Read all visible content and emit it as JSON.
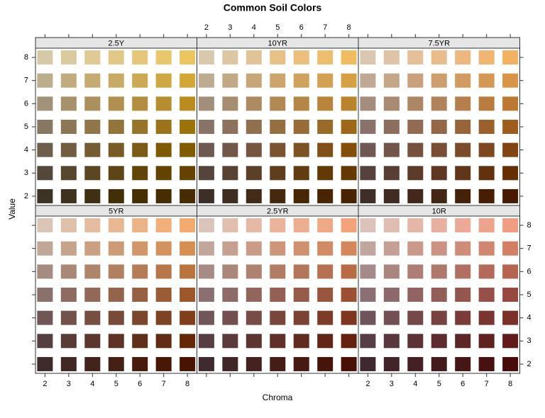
{
  "chart_data": {
    "type": "tile",
    "title": "Common Soil Colors",
    "x_label": "Chroma",
    "y_label": "Value",
    "chroma": [
      2,
      3,
      4,
      5,
      6,
      7,
      8
    ],
    "value": [
      2,
      3,
      4,
      5,
      6,
      7,
      8
    ],
    "xlim": [
      1.6,
      8.4
    ],
    "ylim": [
      1.6,
      8.4
    ],
    "xticks": [
      2,
      3,
      4,
      5,
      6,
      7,
      8
    ],
    "yticks": [
      2,
      3,
      4,
      5,
      6,
      7,
      8
    ],
    "panels": [
      {
        "hue": "2.5Y",
        "colors": [
          [
            "#3c3226",
            "#3e311d",
            "#403012",
            "#422f06",
            "#442e00",
            "#452d00",
            "#462c00"
          ],
          [
            "#54483a",
            "#57472e",
            "#5a4622",
            "#5d4516",
            "#604408",
            "#624300",
            "#644200"
          ],
          [
            "#6d5f4c",
            "#715e40",
            "#755d33",
            "#795c25",
            "#7c5b16",
            "#7f5a05",
            "#825a00"
          ],
          [
            "#877864",
            "#8b7756",
            "#907648",
            "#947538",
            "#98742a",
            "#9b731a",
            "#9d7208"
          ],
          [
            "#a1927a",
            "#a6916c",
            "#ab905e",
            "#b08f4f",
            "#b48e40",
            "#b78d30",
            "#ba8c1f"
          ],
          [
            "#bcad8c",
            "#c0ac80",
            "#c5ab72",
            "#c9aa64",
            "#cca955",
            "#cfa846",
            "#d2a735"
          ],
          [
            "#d6c9a8",
            "#dacaa0",
            "#dfc994",
            "#e2c887",
            "#e5c77a",
            "#e8c66c",
            "#ebc55e"
          ]
        ]
      },
      {
        "hue": "10YR",
        "colors": [
          [
            "#3d2f28",
            "#402d21",
            "#422b17",
            "#44290d",
            "#462703",
            "#482500",
            "#492300"
          ],
          [
            "#55443b",
            "#584232",
            "#5b4027",
            "#5e3e1c",
            "#613c10",
            "#633a04",
            "#653800"
          ],
          [
            "#6e5a50",
            "#725849",
            "#765640",
            "#7a5432",
            "#7d5225",
            "#805018",
            "#834e08"
          ],
          [
            "#887467",
            "#8c725b",
            "#91704e",
            "#956e42",
            "#996c35",
            "#9c6a28",
            "#9f6818"
          ],
          [
            "#a28f7b",
            "#a78d6f",
            "#ac8b61",
            "#b08954",
            "#b48746",
            "#b8853a",
            "#bb832b"
          ],
          [
            "#bdab92",
            "#c2a986",
            "#c7a779",
            "#cba56c",
            "#cfa35e",
            "#d3a151",
            "#d69f42"
          ],
          [
            "#d7c8ae",
            "#dcc6a3",
            "#e1c496",
            "#e6c289",
            "#eac07c",
            "#eebe6e",
            "#f1bc60"
          ]
        ]
      },
      {
        "hue": "7.5YR",
        "colors": [
          [
            "#3e2d29",
            "#402a22",
            "#42271a",
            "#442412",
            "#46210a",
            "#471e02",
            "#481b00"
          ],
          [
            "#56413d",
            "#593e34",
            "#5c3b2b",
            "#5e3822",
            "#613518",
            "#63320d",
            "#652f02"
          ],
          [
            "#6f5753",
            "#73544a",
            "#76513f",
            "#794e35",
            "#7c4b2a",
            "#7e471e",
            "#814412"
          ],
          [
            "#89726a",
            "#8d6e5e",
            "#926b52",
            "#956746",
            "#986439",
            "#9b602c",
            "#9e5d1f"
          ],
          [
            "#a48d7e",
            "#a98a72",
            "#ad8665",
            "#b1835a",
            "#b57f4c",
            "#b87c3f",
            "#bb7832"
          ],
          [
            "#bfa996",
            "#c4a689",
            "#c9a27d",
            "#cd9f6f",
            "#d19b62",
            "#d59755",
            "#d89447"
          ],
          [
            "#dac6b1",
            "#dfc3a6",
            "#e4bf99",
            "#e9bc8c",
            "#ecb87f",
            "#f0b571",
            "#f3b163"
          ]
        ]
      },
      {
        "hue": "5YR",
        "colors": [
          [
            "#3e2b2c",
            "#402824",
            "#42241c",
            "#442015",
            "#451c0d",
            "#471806",
            "#481400"
          ],
          [
            "#563f40",
            "#593b37",
            "#5c372e",
            "#5e3325",
            "#602f1c",
            "#622b13",
            "#64270a"
          ],
          [
            "#705756",
            "#73524c",
            "#774e42",
            "#794a38",
            "#7c462e",
            "#7e4224",
            "#803e1a"
          ],
          [
            "#8a716e",
            "#8e6c63",
            "#926858",
            "#95644d",
            "#986042",
            "#9a5b37",
            "#9d572c"
          ],
          [
            "#a58c82",
            "#aa8877",
            "#ae846b",
            "#b27f60",
            "#b57b55",
            "#b87749",
            "#bb733d"
          ],
          [
            "#c0a798",
            "#c5a38d",
            "#c9a082",
            "#cd9b76",
            "#d1976a",
            "#d4925e",
            "#d78e52"
          ],
          [
            "#dac5b6",
            "#dfc1ab",
            "#e4bc9f",
            "#e8b893",
            "#ecb387",
            "#f0af7b",
            "#f3aa6f"
          ]
        ]
      },
      {
        "hue": "2.5YR",
        "colors": [
          [
            "#3f2a2f",
            "#412627",
            "#432220",
            "#441d19",
            "#461912",
            "#47140b",
            "#481004"
          ],
          [
            "#573e43",
            "#5a3a3a",
            "#5c3531",
            "#5f3029",
            "#612b20",
            "#622618",
            "#64210f"
          ],
          [
            "#705559",
            "#73504f",
            "#774b46",
            "#79463c",
            "#7b4133",
            "#7d3b29",
            "#7f3620"
          ],
          [
            "#8b7072",
            "#8e6b68",
            "#92665d",
            "#946053",
            "#975b49",
            "#99563f",
            "#9b5035"
          ],
          [
            "#a68b86",
            "#aa867b",
            "#ae8170",
            "#b17b66",
            "#b4765b",
            "#b77051",
            "#b96b46"
          ],
          [
            "#c1a69c",
            "#c6a192",
            "#ca9c87",
            "#cd967c",
            "#d09171",
            "#d38b66",
            "#d6865b"
          ],
          [
            "#dbc4b9",
            "#e0bfaf",
            "#e5b9a5",
            "#e9b49a",
            "#edae8f",
            "#f0a985",
            "#f3a37a"
          ]
        ]
      },
      {
        "hue": "10R",
        "colors": [
          [
            "#3f2931",
            "#41242a",
            "#432023",
            "#441b1c",
            "#451616",
            "#461110",
            "#470c0a"
          ],
          [
            "#573d45",
            "#59383d",
            "#5c3235",
            "#5e2c2e",
            "#5f2627",
            "#61211f",
            "#621b18"
          ],
          [
            "#70545b",
            "#734e52",
            "#76484a",
            "#784241",
            "#7a3b39",
            "#7b3531",
            "#7d2f29"
          ],
          [
            "#8b6f74",
            "#8e696b",
            "#916362",
            "#935d59",
            "#955650",
            "#974f47",
            "#98493f"
          ],
          [
            "#a68a89",
            "#aa847f",
            "#ad7d76",
            "#b0776c",
            "#b27063",
            "#b46a5a",
            "#b66351"
          ],
          [
            "#c1a59f",
            "#c59f96",
            "#c9998c",
            "#cc9283",
            "#cf8c79",
            "#d18670",
            "#d37f66"
          ],
          [
            "#dbc3bc",
            "#e0bdb2",
            "#e4b7a9",
            "#e8b19f",
            "#eba996",
            "#eea38c",
            "#f19d83"
          ]
        ]
      }
    ]
  }
}
